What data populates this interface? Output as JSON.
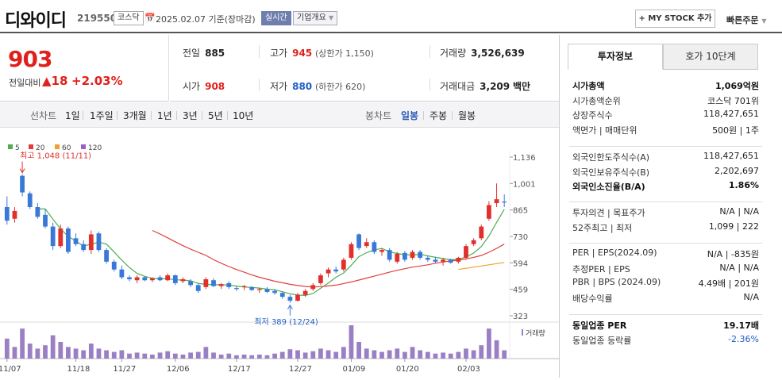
{
  "header": {
    "company_name": "디와이디",
    "code": "219550",
    "market": "코스닥",
    "date": "2025.02.07",
    "basis": "기준(장마감)",
    "realtime_label": "실시간",
    "company_info_label": "기업개요",
    "my_stock_label": "+ MY STOCK 추가",
    "quick_order_label": "빠른주문"
  },
  "price": {
    "current": "903",
    "change_label": "전일대비",
    "change": "18",
    "change_pct": "+2.03%"
  },
  "quote": {
    "prev_close_label": "전일",
    "prev_close": "885",
    "high_label": "고가",
    "high": "945",
    "upper_limit": "(상한가 1,150)",
    "volume_label": "거래량",
    "volume": "3,526,639",
    "open_label": "시가",
    "open": "908",
    "low_label": "저가",
    "low": "880",
    "lower_limit": "(하한가 620)",
    "amount_label": "거래대금",
    "amount": "3,209",
    "amount_unit": "백만"
  },
  "period": {
    "line_label": "선차트",
    "line_items": [
      "1일",
      "1주일",
      "3개월",
      "1년",
      "3년",
      "5년",
      "10년"
    ],
    "candle_label": "봉차트",
    "candle_items": [
      "일봉",
      "주봉",
      "월봉"
    ],
    "active_candle": "일봉"
  },
  "chart_data": {
    "type": "candlestick",
    "legend": [
      {
        "name": "5",
        "color": "#4caf50"
      },
      {
        "name": "20",
        "color": "#e0403c"
      },
      {
        "name": "60",
        "color": "#f0a030"
      },
      {
        "name": "120",
        "color": "#9c5fc8"
      }
    ],
    "yticks": [
      "1,136",
      "1,001",
      "865",
      "730",
      "594",
      "459",
      "323"
    ],
    "ylim": [
      323,
      1136
    ],
    "xticks": [
      "11/07",
      "11/18",
      "11/27",
      "12/06",
      "12/17",
      "12/27",
      "01/09",
      "01/20",
      "02/03"
    ],
    "high_label": "최고 1,048 (11/11)",
    "low_label": "최저 389 (12/24)",
    "volume_label": "거래량",
    "up_color": "#e0302c",
    "down_color": "#3a78d8",
    "candles": [
      {
        "o": 880,
        "h": 935,
        "l": 790,
        "c": 810
      },
      {
        "o": 820,
        "h": 880,
        "l": 800,
        "c": 860
      },
      {
        "o": 1040,
        "h": 1048,
        "l": 935,
        "c": 955
      },
      {
        "o": 950,
        "h": 960,
        "l": 870,
        "c": 880
      },
      {
        "o": 880,
        "h": 900,
        "l": 820,
        "c": 830
      },
      {
        "o": 840,
        "h": 870,
        "l": 770,
        "c": 780
      },
      {
        "o": 780,
        "h": 800,
        "l": 660,
        "c": 680
      },
      {
        "o": 680,
        "h": 790,
        "l": 670,
        "c": 770
      },
      {
        "o": 770,
        "h": 780,
        "l": 640,
        "c": 650
      },
      {
        "o": 720,
        "h": 745,
        "l": 680,
        "c": 690
      },
      {
        "o": 690,
        "h": 710,
        "l": 650,
        "c": 660
      },
      {
        "o": 660,
        "h": 760,
        "l": 640,
        "c": 740
      },
      {
        "o": 745,
        "h": 755,
        "l": 650,
        "c": 660
      },
      {
        "o": 660,
        "h": 670,
        "l": 590,
        "c": 600
      },
      {
        "o": 600,
        "h": 610,
        "l": 550,
        "c": 560
      },
      {
        "o": 560,
        "h": 580,
        "l": 510,
        "c": 520
      },
      {
        "o": 520,
        "h": 530,
        "l": 500,
        "c": 510
      },
      {
        "o": 505,
        "h": 530,
        "l": 490,
        "c": 520
      },
      {
        "o": 520,
        "h": 525,
        "l": 500,
        "c": 505
      },
      {
        "o": 505,
        "h": 520,
        "l": 495,
        "c": 515
      },
      {
        "o": 520,
        "h": 530,
        "l": 500,
        "c": 505
      },
      {
        "o": 505,
        "h": 540,
        "l": 500,
        "c": 530
      },
      {
        "o": 530,
        "h": 535,
        "l": 480,
        "c": 490
      },
      {
        "o": 500,
        "h": 520,
        "l": 490,
        "c": 510
      },
      {
        "o": 500,
        "h": 510,
        "l": 470,
        "c": 480
      },
      {
        "o": 480,
        "h": 490,
        "l": 440,
        "c": 450
      },
      {
        "o": 470,
        "h": 520,
        "l": 460,
        "c": 510
      },
      {
        "o": 505,
        "h": 515,
        "l": 470,
        "c": 475
      },
      {
        "o": 475,
        "h": 490,
        "l": 460,
        "c": 485
      },
      {
        "o": 490,
        "h": 500,
        "l": 460,
        "c": 470
      },
      {
        "o": 465,
        "h": 475,
        "l": 450,
        "c": 460
      },
      {
        "o": 470,
        "h": 480,
        "l": 455,
        "c": 475
      },
      {
        "o": 470,
        "h": 475,
        "l": 450,
        "c": 455
      },
      {
        "o": 455,
        "h": 465,
        "l": 440,
        "c": 460
      },
      {
        "o": 460,
        "h": 470,
        "l": 440,
        "c": 445
      },
      {
        "o": 450,
        "h": 460,
        "l": 430,
        "c": 440
      },
      {
        "o": 440,
        "h": 445,
        "l": 410,
        "c": 420
      },
      {
        "o": 420,
        "h": 430,
        "l": 389,
        "c": 400
      },
      {
        "o": 400,
        "h": 440,
        "l": 395,
        "c": 430
      },
      {
        "o": 430,
        "h": 460,
        "l": 420,
        "c": 450
      },
      {
        "o": 460,
        "h": 490,
        "l": 450,
        "c": 480
      },
      {
        "o": 490,
        "h": 540,
        "l": 480,
        "c": 530
      },
      {
        "o": 540,
        "h": 570,
        "l": 520,
        "c": 560
      },
      {
        "o": 560,
        "h": 575,
        "l": 540,
        "c": 550
      },
      {
        "o": 560,
        "h": 620,
        "l": 550,
        "c": 610
      },
      {
        "o": 620,
        "h": 700,
        "l": 610,
        "c": 690
      },
      {
        "o": 740,
        "h": 745,
        "l": 660,
        "c": 670
      },
      {
        "o": 680,
        "h": 720,
        "l": 670,
        "c": 700
      },
      {
        "o": 700,
        "h": 710,
        "l": 640,
        "c": 650
      },
      {
        "o": 650,
        "h": 670,
        "l": 630,
        "c": 660
      },
      {
        "o": 660,
        "h": 670,
        "l": 600,
        "c": 610
      },
      {
        "o": 600,
        "h": 650,
        "l": 590,
        "c": 640
      },
      {
        "o": 645,
        "h": 655,
        "l": 600,
        "c": 610
      },
      {
        "o": 620,
        "h": 660,
        "l": 610,
        "c": 650
      },
      {
        "o": 650,
        "h": 660,
        "l": 610,
        "c": 620
      },
      {
        "o": 620,
        "h": 630,
        "l": 600,
        "c": 610
      },
      {
        "o": 610,
        "h": 625,
        "l": 590,
        "c": 600
      },
      {
        "o": 600,
        "h": 620,
        "l": 580,
        "c": 610
      },
      {
        "o": 610,
        "h": 615,
        "l": 590,
        "c": 595
      },
      {
        "o": 600,
        "h": 625,
        "l": 590,
        "c": 620
      },
      {
        "o": 620,
        "h": 690,
        "l": 610,
        "c": 680
      },
      {
        "o": 690,
        "h": 720,
        "l": 680,
        "c": 710
      },
      {
        "o": 720,
        "h": 790,
        "l": 710,
        "c": 780
      },
      {
        "o": 820,
        "h": 910,
        "l": 810,
        "c": 890
      },
      {
        "o": 900,
        "h": 1001,
        "l": 880,
        "c": 920
      },
      {
        "o": 908,
        "h": 945,
        "l": 880,
        "c": 903
      }
    ],
    "volumes": [
      60,
      35,
      90,
      45,
      30,
      40,
      70,
      50,
      35,
      30,
      25,
      45,
      30,
      25,
      20,
      25,
      15,
      18,
      15,
      12,
      18,
      22,
      15,
      12,
      18,
      20,
      35,
      18,
      12,
      15,
      10,
      12,
      10,
      12,
      10,
      15,
      20,
      28,
      25,
      18,
      22,
      30,
      25,
      20,
      35,
      100,
      50,
      30,
      25,
      20,
      25,
      30,
      20,
      35,
      25,
      20,
      15,
      18,
      15,
      20,
      30,
      25,
      40,
      90,
      55,
      25
    ],
    "ma": {
      "5": [
        null,
        null,
        null,
        null,
        870,
        870,
        818,
        768,
        730,
        705,
        680,
        690,
        700,
        690,
        650,
        608,
        570,
        540,
        525,
        515,
        512,
        513,
        507,
        506,
        502,
        489,
        484,
        482,
        482,
        480,
        475,
        470,
        468,
        465,
        459,
        456,
        446,
        435,
        429,
        427,
        437,
        464,
        490,
        520,
        542,
        582,
        626,
        646,
        660,
        668,
        650,
        642,
        636,
        634,
        638,
        630,
        622,
        616,
        610,
        612,
        624,
        644,
        678,
        732,
        801,
        868
      ],
      "20": [
        null,
        null,
        null,
        null,
        null,
        null,
        null,
        null,
        null,
        null,
        null,
        null,
        null,
        null,
        null,
        null,
        null,
        null,
        null,
        760,
        742,
        722,
        702,
        682,
        664,
        648,
        632,
        610,
        592,
        575,
        560,
        546,
        532,
        520,
        510,
        500,
        492,
        484,
        478,
        473,
        470,
        472,
        476,
        480,
        488,
        496,
        506,
        516,
        526,
        536,
        546,
        556,
        564,
        572,
        578,
        584,
        592,
        598,
        604,
        608,
        614,
        622,
        632,
        648,
        668,
        690
      ],
      "60": [
        null,
        null,
        null,
        null,
        null,
        null,
        null,
        null,
        null,
        null,
        null,
        null,
        null,
        null,
        null,
        null,
        null,
        null,
        null,
        null,
        null,
        null,
        null,
        null,
        null,
        null,
        null,
        null,
        null,
        null,
        null,
        null,
        null,
        null,
        null,
        null,
        null,
        null,
        null,
        null,
        null,
        null,
        null,
        null,
        null,
        null,
        null,
        null,
        null,
        null,
        null,
        null,
        null,
        null,
        null,
        null,
        null,
        null,
        null,
        560,
        566,
        572,
        578,
        584,
        590,
        596
      ]
    }
  },
  "right": {
    "tab_info": "투자정보",
    "tab_orderbook": "호가 10단계",
    "rows": [
      {
        "label": "시가총액",
        "value": "1,069억원",
        "bold": true
      },
      {
        "label": "시가총액순위",
        "value": "코스닥 701위"
      },
      {
        "label": "상장주식수",
        "value": "118,427,651"
      },
      {
        "label": "액면가 | 매매단위",
        "value": "500원 | 1주"
      }
    ],
    "foreign_rows": [
      {
        "label": "외국인한도주식수(A)",
        "value": "118,427,651"
      },
      {
        "label": "외국인보유주식수(B)",
        "value": "2,202,697"
      },
      {
        "label": "외국인소진율(B/A)",
        "value": "1.86%",
        "bold": true
      }
    ],
    "opinion_rows": [
      {
        "label": "투자의견 | 목표주가",
        "value": "N/A | N/A"
      },
      {
        "label": "52주최고 | 최저",
        "value": "1,099 | 222"
      }
    ],
    "per_rows": [
      {
        "label": "PER | EPS(2024.09)",
        "value": "N/A | -835원"
      },
      {
        "label": "추정PER | EPS",
        "value": "N/A | N/A"
      },
      {
        "label": "PBR | BPS (2024.09)",
        "value": "4.49배 | 201원"
      },
      {
        "label": "배당수익률",
        "value": "N/A"
      }
    ],
    "industry_rows": [
      {
        "label": "동일업종 PER",
        "value": "19.17배",
        "bold": true
      },
      {
        "label": "동일업종 등락률",
        "value": "-2.36%",
        "neg": true
      }
    ]
  }
}
